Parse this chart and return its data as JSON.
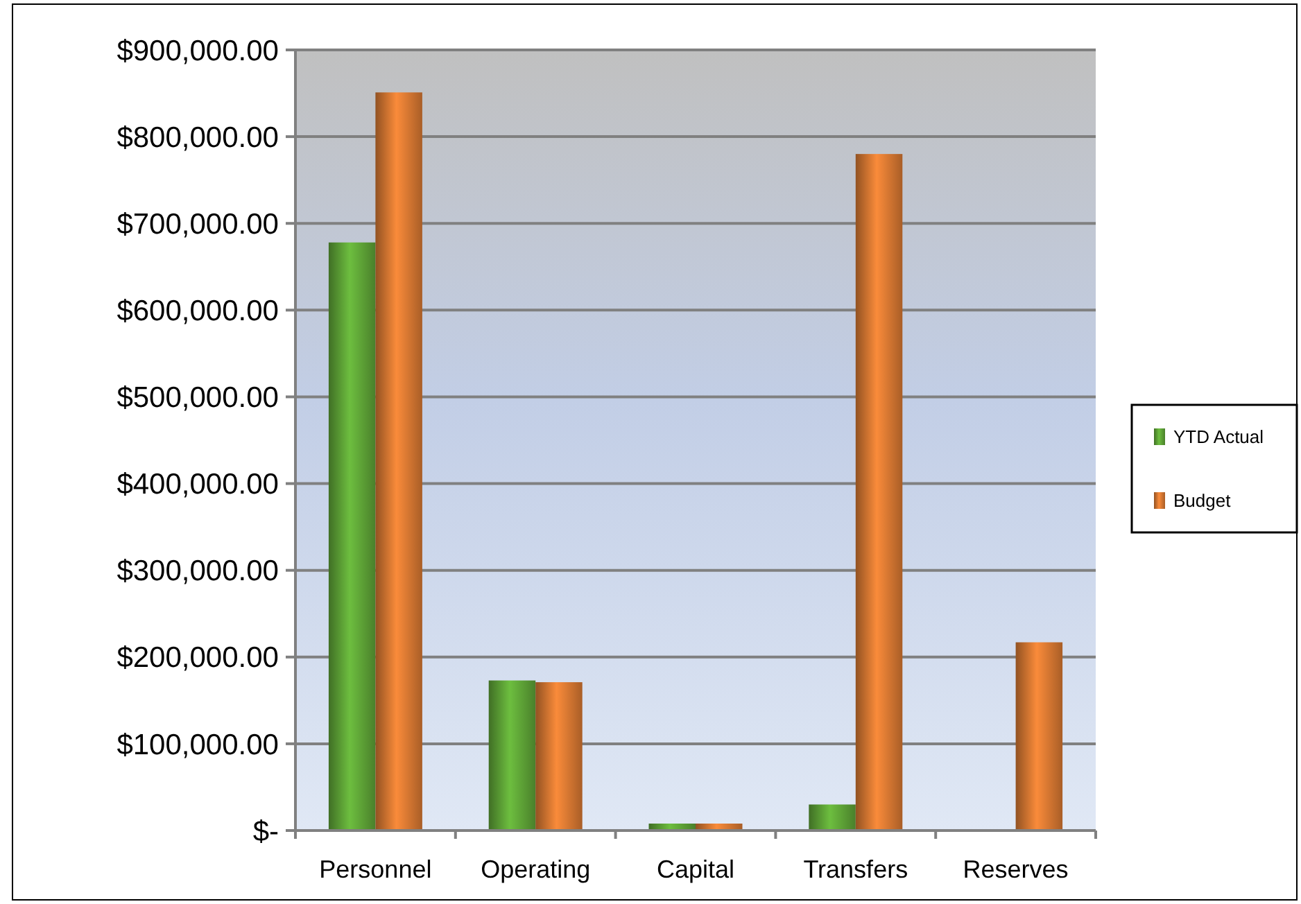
{
  "chart_data": {
    "type": "bar",
    "categories": [
      "Personnel",
      "Operating",
      "Capital",
      "Transfers",
      "Reserves"
    ],
    "series": [
      {
        "name": "YTD Actual",
        "color": "#4f8a2e",
        "values": [
          678000,
          173000,
          8000,
          30000,
          0
        ]
      },
      {
        "name": "Budget",
        "color": "#b5652a",
        "values": [
          851000,
          171000,
          8000,
          780000,
          217000
        ]
      }
    ],
    "ylim": [
      0,
      900000
    ],
    "yticks": [
      {
        "value": 0,
        "label": "$-"
      },
      {
        "value": 100000,
        "label": "$100,000.00"
      },
      {
        "value": 200000,
        "label": "$200,000.00"
      },
      {
        "value": 300000,
        "label": "$300,000.00"
      },
      {
        "value": 400000,
        "label": "$400,000.00"
      },
      {
        "value": 500000,
        "label": "$500,000.00"
      },
      {
        "value": 600000,
        "label": "$600,000.00"
      },
      {
        "value": 700000,
        "label": "$700,000.00"
      },
      {
        "value": 800000,
        "label": "$800,000.00"
      },
      {
        "value": 900000,
        "label": "$900,000.00"
      }
    ],
    "grid": "y",
    "legend": "right"
  }
}
